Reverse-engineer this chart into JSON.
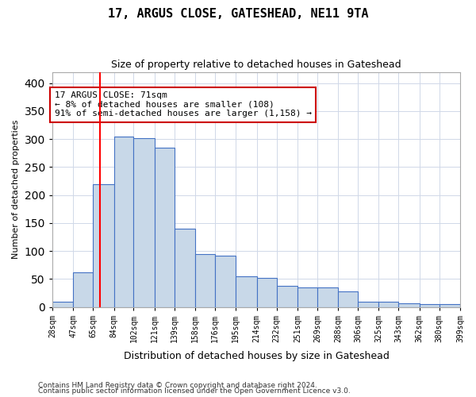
{
  "title": "17, ARGUS CLOSE, GATESHEAD, NE11 9TA",
  "subtitle": "Size of property relative to detached houses in Gateshead",
  "xlabel": "Distribution of detached houses by size in Gateshead",
  "ylabel": "Number of detached properties",
  "bar_edges": [
    28,
    47,
    65,
    84,
    102,
    121,
    139,
    158,
    176,
    195,
    214,
    232,
    251,
    269,
    288,
    306,
    325,
    343,
    362,
    380,
    399
  ],
  "bar_heights": [
    10,
    62,
    220,
    305,
    302,
    285,
    140,
    95,
    92,
    55,
    52,
    38,
    35,
    35,
    28,
    10,
    10,
    7,
    5,
    5
  ],
  "bar_color": "#c8d8e8",
  "bar_edge_color": "#4472c4",
  "red_line_x": 71,
  "annotation_title": "17 ARGUS CLOSE: 71sqm",
  "annotation_line1": "← 8% of detached houses are smaller (108)",
  "annotation_line2": "91% of semi-detached houses are larger (1,158) →",
  "annotation_box_color": "#ffffff",
  "annotation_box_edge": "#cc0000",
  "ylim": [
    0,
    420
  ],
  "tick_labels": [
    "28sqm",
    "47sqm",
    "65sqm",
    "84sqm",
    "102sqm",
    "121sqm",
    "139sqm",
    "158sqm",
    "176sqm",
    "195sqm",
    "214sqm",
    "232sqm",
    "251sqm",
    "269sqm",
    "288sqm",
    "306sqm",
    "325sqm",
    "343sqm",
    "362sqm",
    "380sqm",
    "399sqm"
  ],
  "footnote1": "Contains HM Land Registry data © Crown copyright and database right 2024.",
  "footnote2": "Contains public sector information licensed under the Open Government Licence v3.0.",
  "bg_color": "#ffffff",
  "grid_color": "#d0d8e8"
}
